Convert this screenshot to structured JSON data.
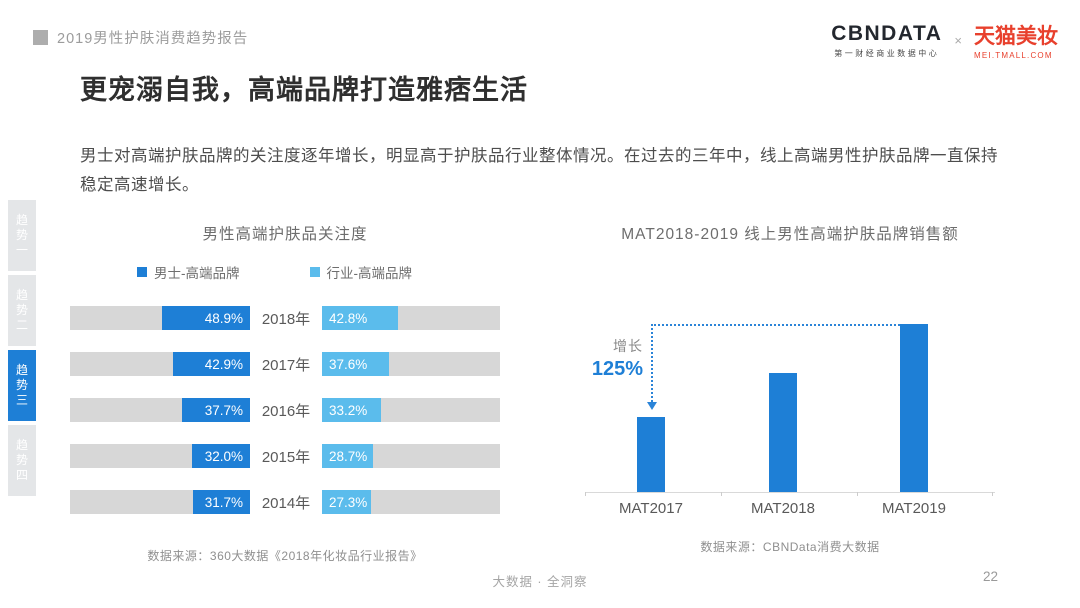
{
  "header": {
    "report_title": "2019男性护肤消费趋势报告"
  },
  "logos": {
    "cbndata": "CBNDATA",
    "cbndata_subtitle": "第一财经商业数据中心",
    "cbndata_color": "#23272E",
    "separator": "×",
    "tmall": "天猫美妆",
    "tmall_subtitle": "MEI.TMALL.COM",
    "tmall_color": "#E8402D"
  },
  "slide": {
    "title": "更宠溺自我，高端品牌打造雅痞生活",
    "body": "男士对高端护肤品牌的关注度逐年增长，明显高于护肤品行业整体情况。在过去的三年中，线上高端男性护肤品牌一直保持稳定高速增长。"
  },
  "sidebar": {
    "active_color": "#1E7FD6",
    "inactive_color": "#E4E6E8",
    "items": [
      {
        "label": "趋势一",
        "active": false
      },
      {
        "label": "趋势二",
        "active": false
      },
      {
        "label": "趋势三",
        "active": true
      },
      {
        "label": "趋势四",
        "active": false
      }
    ]
  },
  "chart_data": [
    {
      "type": "bar",
      "variant": "tornado-horizontal",
      "title": "男性高端护肤品关注度",
      "categories": [
        "2018年",
        "2017年",
        "2016年",
        "2015年",
        "2014年"
      ],
      "series": [
        {
          "name": "男士-高端品牌",
          "color": "#1E7FD6",
          "values": [
            48.9,
            42.9,
            37.7,
            32.0,
            31.7
          ]
        },
        {
          "name": "行业-高端品牌",
          "color": "#5BBCEC",
          "values": [
            42.8,
            37.6,
            33.2,
            28.7,
            27.3
          ]
        }
      ],
      "unit": "%",
      "xlim": [
        0,
        100
      ],
      "track_color": "#D7D7D7",
      "legend_position": "top",
      "source": "数据来源：360大数据《2018年化妆品行业报告》"
    },
    {
      "type": "bar",
      "variant": "column-vertical",
      "title": "MAT2018-2019 线上男性高端护肤品牌销售额",
      "categories": [
        "MAT2017",
        "MAT2018",
        "MAT2019"
      ],
      "values": [
        100,
        160,
        225
      ],
      "ylim": [
        0,
        225
      ],
      "bar_color": "#1E7FD6",
      "annotation": {
        "label": "增长",
        "value": "125%"
      },
      "source": "数据来源：CBNData消费大数据"
    }
  ],
  "footer": {
    "center": "大数据 · 全洞察",
    "page_number": "22"
  }
}
